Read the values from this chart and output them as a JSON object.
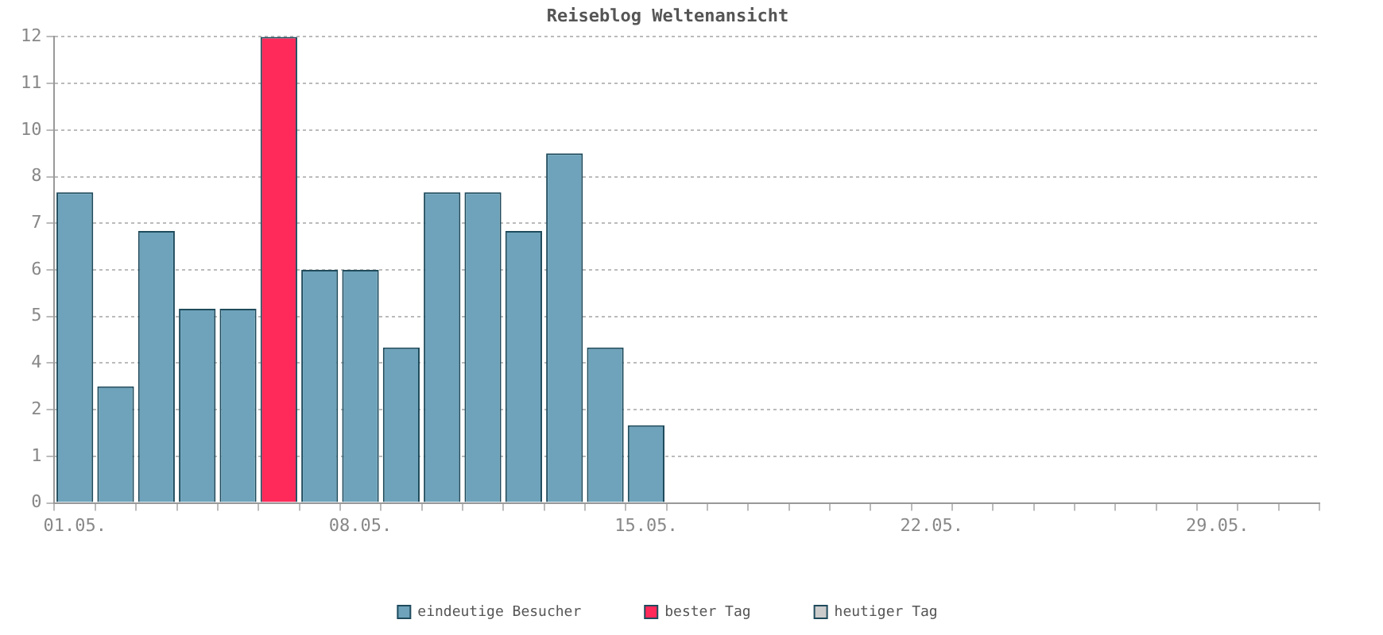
{
  "chart_data": {
    "type": "bar",
    "title": "Reiseblog Weltenansicht",
    "categories": [
      "01.05.",
      null,
      null,
      null,
      null,
      null,
      null,
      "08.05.",
      null,
      null,
      null,
      null,
      null,
      null,
      "15.05.",
      null,
      null,
      null,
      null,
      null,
      null,
      "22.05.",
      null,
      null,
      null,
      null,
      null,
      null,
      "29.05.",
      null,
      null
    ],
    "series": [
      {
        "name": "eindeutige Besucher",
        "color": "#6ea3bb",
        "values": [
          8,
          3,
          7,
          5,
          5,
          null,
          6,
          6,
          4,
          8,
          8,
          7,
          9,
          4,
          2,
          null,
          null,
          null,
          null,
          null,
          null,
          null,
          null,
          null,
          null,
          null,
          null,
          null,
          null,
          null,
          null
        ]
      },
      {
        "name": "bester Tag",
        "color": "#ff2a5a",
        "values": [
          null,
          null,
          null,
          null,
          null,
          12,
          null,
          null,
          null,
          null,
          null,
          null,
          null,
          null,
          null,
          null,
          null,
          null,
          null,
          null,
          null,
          null,
          null,
          null,
          null,
          null,
          null,
          null,
          null,
          null,
          null
        ]
      },
      {
        "name": "heutiger Tag",
        "color": "#cccccc",
        "values": [
          null,
          null,
          null,
          null,
          null,
          null,
          null,
          null,
          null,
          null,
          null,
          null,
          null,
          null,
          null,
          null,
          null,
          null,
          null,
          null,
          null,
          null,
          null,
          null,
          null,
          null,
          null,
          null,
          null,
          null,
          null
        ]
      }
    ],
    "ylim": [
      0,
      12
    ],
    "yticks": [
      0,
      {
        "value": 1.2,
        "label": "1"
      },
      {
        "value": 2.4,
        "label": "2"
      },
      {
        "value": 3.6,
        "label": "4"
      },
      {
        "value": 4.8,
        "label": "5"
      },
      6,
      {
        "value": 7.2,
        "label": "7"
      },
      {
        "value": 8.4,
        "label": "8"
      },
      {
        "value": 9.6,
        "label": "10"
      },
      {
        "value": 10.8,
        "label": "11"
      },
      12
    ],
    "grid": "y",
    "legend": "bottom"
  }
}
